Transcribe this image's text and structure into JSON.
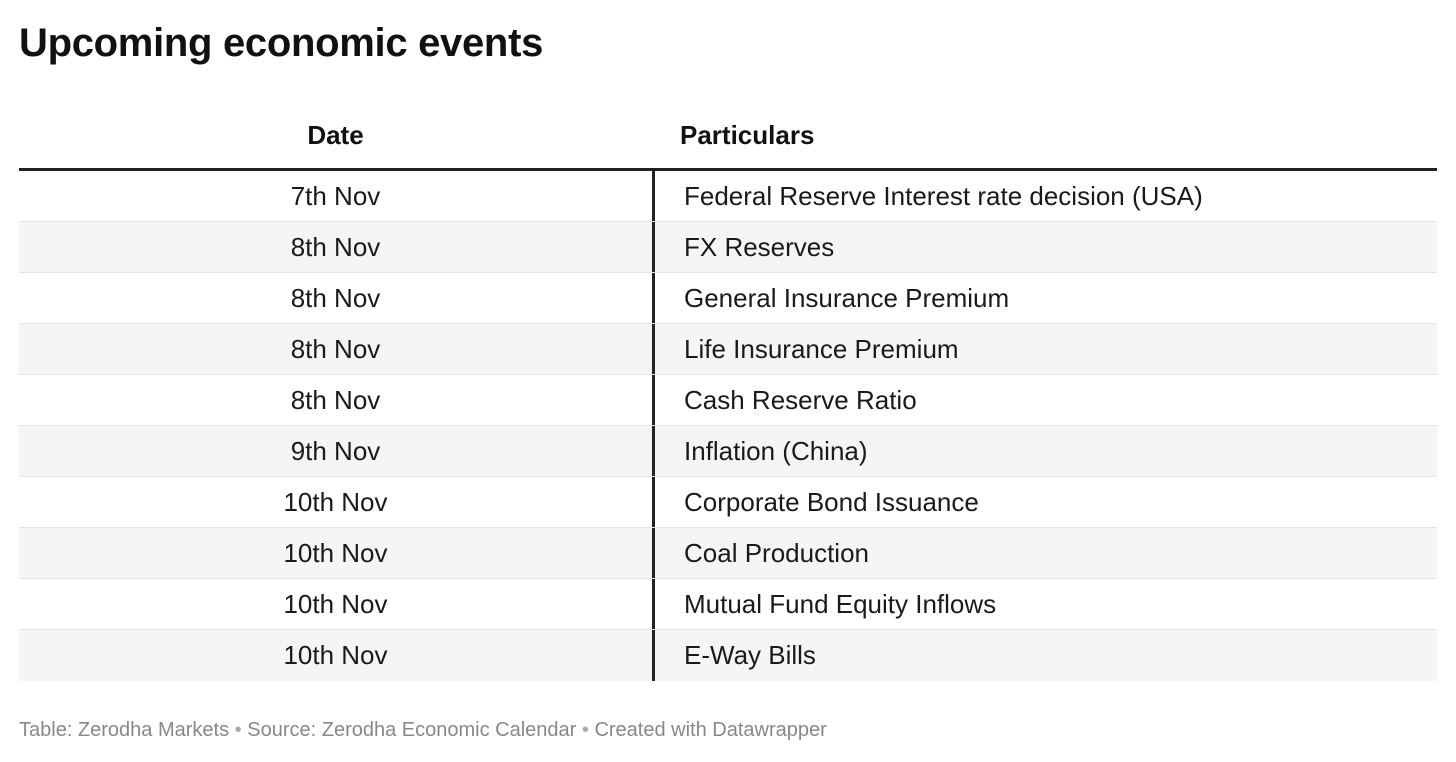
{
  "title": "Upcoming economic events",
  "table": {
    "headers": {
      "date": "Date",
      "particulars": "Particulars"
    },
    "rows": [
      {
        "date": "7th Nov",
        "particulars": "Federal Reserve Interest rate decision (USA)"
      },
      {
        "date": "8th Nov",
        "particulars": "FX Reserves"
      },
      {
        "date": "8th Nov",
        "particulars": "General Insurance Premium"
      },
      {
        "date": "8th Nov",
        "particulars": "Life Insurance Premium"
      },
      {
        "date": "8th Nov",
        "particulars": "Cash Reserve Ratio"
      },
      {
        "date": "9th Nov",
        "particulars": "Inflation (China)"
      },
      {
        "date": "10th Nov",
        "particulars": "Corporate Bond Issuance"
      },
      {
        "date": "10th Nov",
        "particulars": "Coal Production"
      },
      {
        "date": "10th Nov",
        "particulars": "Mutual Fund Equity Inflows"
      },
      {
        "date": "10th Nov",
        "particulars": "E-Way Bills"
      }
    ]
  },
  "footer": {
    "table_credit": "Table: Zerodha Markets",
    "source": "Source: Zerodha Economic Calendar",
    "created_with": "Created with Datawrapper",
    "separator": "•"
  },
  "colors": {
    "header_rule": "#222222",
    "alt_row": "#f5f5f5",
    "row_divider": "#e3e3e3",
    "footer_text": "#888888"
  }
}
